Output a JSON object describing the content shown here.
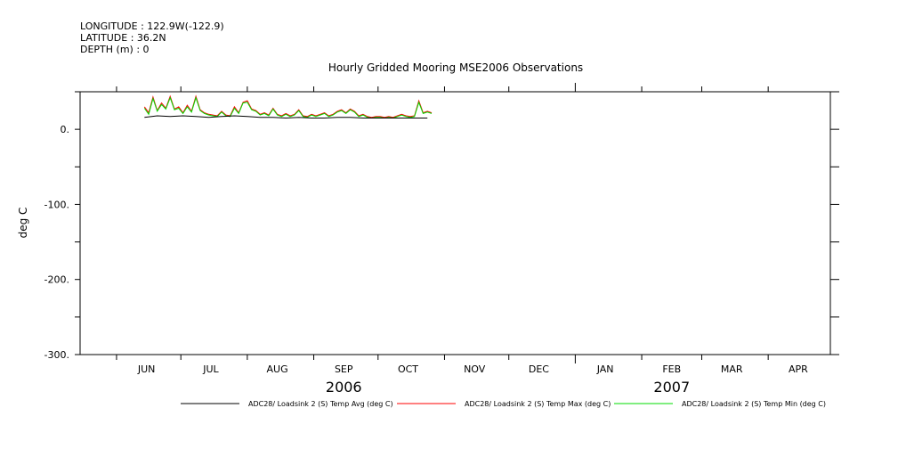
{
  "header": {
    "longitude": "LONGITUDE : 122.9W(-122.9)",
    "latitude": "LATITUDE : 36.2N",
    "depth": "DEPTH (m) : 0"
  },
  "chart_data": {
    "type": "line",
    "title": "Hourly Gridded Mooring MSE2006 Observations",
    "xlabel": "",
    "ylabel": "deg C",
    "ylim": [
      -300,
      50
    ],
    "y_ticks": [
      0,
      -100,
      -200,
      -300
    ],
    "y_tick_labels": [
      "0.",
      "-100.",
      "-200.",
      "-300."
    ],
    "x_range": [
      "2006-05-15",
      "2007-04-30"
    ],
    "month_labels": [
      "JUN",
      "JUL",
      "AUG",
      "SEP",
      "OCT",
      "NOV",
      "DEC",
      "JAN",
      "FEB",
      "MAR",
      "APR"
    ],
    "year_labels": [
      "2006",
      "2007"
    ],
    "grid": false,
    "legend_position": "bottom",
    "series": [
      {
        "name": "ADC28/ Loadsink 2 (S) Temp Avg (deg C)",
        "color": "#000000",
        "x": [
          "2006-06-14",
          "2006-06-20",
          "2006-06-26",
          "2006-07-02",
          "2006-07-08",
          "2006-07-14",
          "2006-07-20",
          "2006-07-26",
          "2006-08-01",
          "2006-08-07",
          "2006-08-13",
          "2006-08-19",
          "2006-08-25",
          "2006-08-31",
          "2006-09-06",
          "2006-09-12",
          "2006-09-18",
          "2006-09-24",
          "2006-09-30",
          "2006-10-06",
          "2006-10-12",
          "2006-10-18",
          "2006-10-24"
        ],
        "values": [
          16,
          18,
          17,
          18,
          17,
          16,
          17,
          18,
          17,
          16,
          16,
          15,
          16,
          15,
          15,
          16,
          16,
          15,
          15,
          15,
          15,
          15,
          15
        ]
      },
      {
        "name": "ADC28/ Loadsink 2 (S) Temp Max (deg C)",
        "color": "#ff0000",
        "x": [
          "2006-06-14",
          "2006-06-16",
          "2006-06-18",
          "2006-06-20",
          "2006-06-22",
          "2006-06-24",
          "2006-06-26",
          "2006-06-28",
          "2006-06-30",
          "2006-07-02",
          "2006-07-04",
          "2006-07-06",
          "2006-07-08",
          "2006-07-10",
          "2006-07-12",
          "2006-07-14",
          "2006-07-16",
          "2006-07-18",
          "2006-07-20",
          "2006-07-22",
          "2006-07-24",
          "2006-07-26",
          "2006-07-28",
          "2006-07-30",
          "2006-08-01",
          "2006-08-03",
          "2006-08-05",
          "2006-08-07",
          "2006-08-09",
          "2006-08-11",
          "2006-08-13",
          "2006-08-15",
          "2006-08-17",
          "2006-08-19",
          "2006-08-21",
          "2006-08-23",
          "2006-08-25",
          "2006-08-27",
          "2006-08-29",
          "2006-08-31",
          "2006-09-02",
          "2006-09-04",
          "2006-09-06",
          "2006-09-08",
          "2006-09-10",
          "2006-09-12",
          "2006-09-14",
          "2006-09-16",
          "2006-09-18",
          "2006-09-20",
          "2006-09-22",
          "2006-09-24",
          "2006-09-26",
          "2006-09-28",
          "2006-09-30",
          "2006-10-02",
          "2006-10-04",
          "2006-10-06",
          "2006-10-08",
          "2006-10-10",
          "2006-10-12",
          "2006-10-14",
          "2006-10-16",
          "2006-10-18",
          "2006-10-20",
          "2006-10-22",
          "2006-10-24",
          "2006-10-26"
        ],
        "values": [
          30,
          22,
          43,
          25,
          35,
          28,
          44,
          27,
          30,
          22,
          32,
          24,
          44,
          26,
          22,
          20,
          19,
          18,
          24,
          19,
          18,
          30,
          22,
          36,
          38,
          27,
          25,
          20,
          22,
          19,
          28,
          20,
          18,
          21,
          18,
          20,
          26,
          18,
          17,
          20,
          18,
          20,
          22,
          18,
          20,
          24,
          26,
          22,
          27,
          24,
          18,
          20,
          17,
          16,
          17,
          17,
          16,
          17,
          16,
          18,
          20,
          18,
          17,
          18,
          38,
          22,
          24,
          22
        ]
      },
      {
        "name": "ADC28/ Loadsink 2 (S) Temp Min (deg C)",
        "color": "#00dd00",
        "x": [
          "2006-06-14",
          "2006-06-16",
          "2006-06-18",
          "2006-06-20",
          "2006-06-22",
          "2006-06-24",
          "2006-06-26",
          "2006-06-28",
          "2006-06-30",
          "2006-07-02",
          "2006-07-04",
          "2006-07-06",
          "2006-07-08",
          "2006-07-10",
          "2006-07-12",
          "2006-07-14",
          "2006-07-16",
          "2006-07-18",
          "2006-07-20",
          "2006-07-22",
          "2006-07-24",
          "2006-07-26",
          "2006-07-28",
          "2006-07-30",
          "2006-08-01",
          "2006-08-03",
          "2006-08-05",
          "2006-08-07",
          "2006-08-09",
          "2006-08-11",
          "2006-08-13",
          "2006-08-15",
          "2006-08-17",
          "2006-08-19",
          "2006-08-21",
          "2006-08-23",
          "2006-08-25",
          "2006-08-27",
          "2006-08-29",
          "2006-08-31",
          "2006-09-02",
          "2006-09-04",
          "2006-09-06",
          "2006-09-08",
          "2006-09-10",
          "2006-09-12",
          "2006-09-14",
          "2006-09-16",
          "2006-09-18",
          "2006-09-20",
          "2006-09-22",
          "2006-09-24",
          "2006-09-26",
          "2006-09-28",
          "2006-09-30",
          "2006-10-02",
          "2006-10-04",
          "2006-10-06",
          "2006-10-08",
          "2006-10-10",
          "2006-10-12",
          "2006-10-14",
          "2006-10-16",
          "2006-10-18",
          "2006-10-20",
          "2006-10-22",
          "2006-10-24",
          "2006-10-26"
        ],
        "values": [
          28,
          20,
          41,
          24,
          33,
          27,
          42,
          26,
          28,
          21,
          30,
          23,
          42,
          25,
          21,
          19,
          18,
          17,
          23,
          18,
          17,
          28,
          21,
          35,
          36,
          26,
          24,
          19,
          21,
          18,
          27,
          19,
          17,
          20,
          17,
          19,
          25,
          17,
          16,
          19,
          17,
          19,
          21,
          17,
          19,
          23,
          25,
          21,
          26,
          23,
          17,
          19,
          16,
          15,
          16,
          16,
          15,
          16,
          15,
          17,
          19,
          17,
          16,
          17,
          36,
          21,
          23,
          21
        ]
      }
    ]
  }
}
